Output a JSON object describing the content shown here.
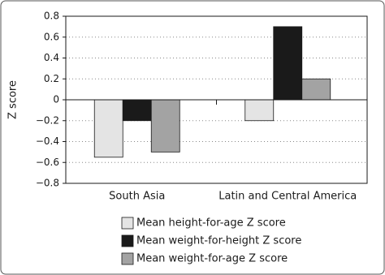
{
  "chart_data": {
    "type": "bar",
    "y_label": "Z score",
    "categories": [
      "South Asia",
      "Latin and Central America"
    ],
    "series": [
      {
        "name": "Mean height-for-age Z score",
        "color": "#e4e4e4",
        "values": [
          -0.55,
          -0.2
        ]
      },
      {
        "name": "Mean weight-for-height Z score",
        "color": "#1a1a1a",
        "values": [
          -0.2,
          0.7
        ]
      },
      {
        "name": "Mean weight-for-age Z score",
        "color": "#a3a3a3",
        "values": [
          -0.5,
          0.2
        ]
      }
    ],
    "ylim": [
      -0.8,
      0.8
    ],
    "yticks": [
      {
        "value": -0.8,
        "label": "−0.8"
      },
      {
        "value": -0.6,
        "label": "−0.6"
      },
      {
        "value": -0.4,
        "label": "−0.4"
      },
      {
        "value": -0.2,
        "label": "−0.2"
      },
      0,
      0.2,
      0.4,
      0.6,
      0.8
    ],
    "grid": true
  }
}
